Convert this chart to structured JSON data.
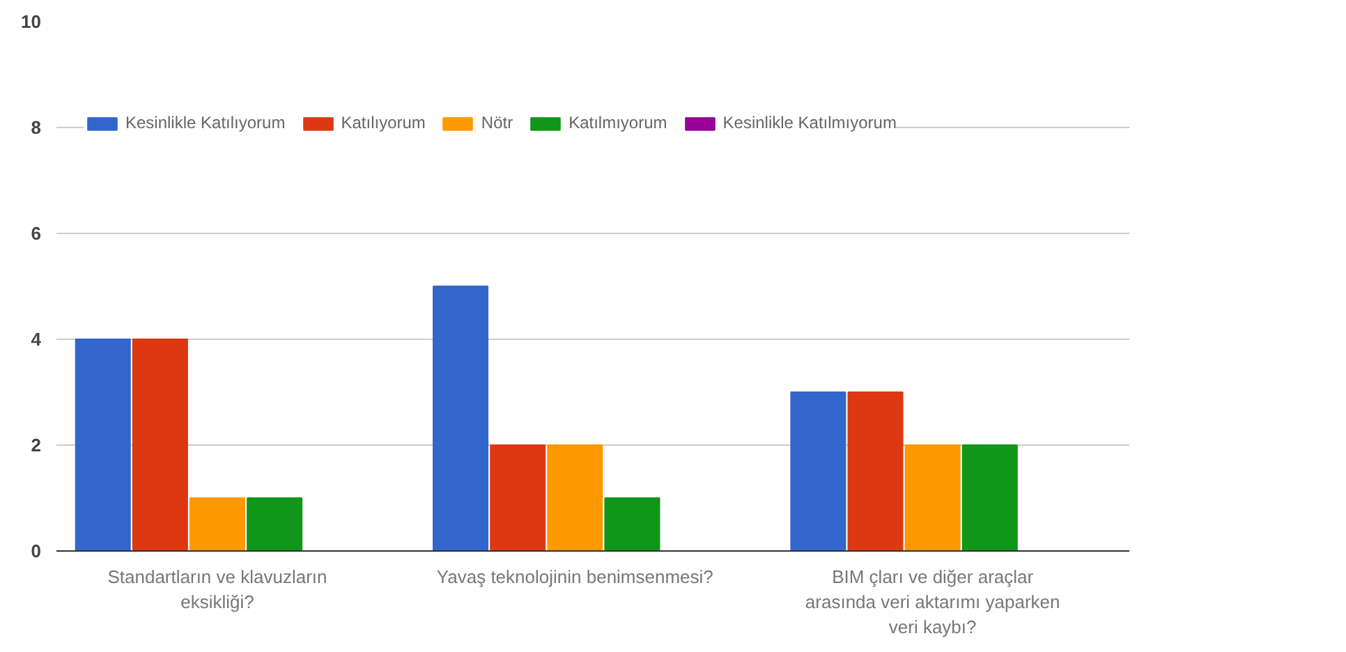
{
  "chart_data": {
    "type": "bar",
    "categories": [
      "Standartların ve klavuzların eksikliği?",
      "Yavaş teknolojinin benimsenmesi?",
      "BIM çları ve diğer araçlar arasında veri aktarımı yaparken veri kaybı?"
    ],
    "series": [
      {
        "name": "Kesinlikle Katılıyorum",
        "color": "#3366cc",
        "values": [
          4,
          5,
          3
        ]
      },
      {
        "name": "Katılıyorum",
        "color": "#dc3912",
        "values": [
          4,
          2,
          3
        ]
      },
      {
        "name": "Nötr",
        "color": "#ff9900",
        "values": [
          1,
          2,
          2
        ]
      },
      {
        "name": "Katılmıyorum",
        "color": "#109618",
        "values": [
          1,
          1,
          2
        ]
      },
      {
        "name": "Kesinlikle Katılmıyorum",
        "color": "#990099",
        "values": [
          0,
          0,
          0
        ]
      }
    ],
    "ylim": [
      0,
      10
    ],
    "yticks": [
      0,
      2,
      4,
      6,
      8,
      10
    ],
    "grid": "y",
    "legend": "top"
  }
}
